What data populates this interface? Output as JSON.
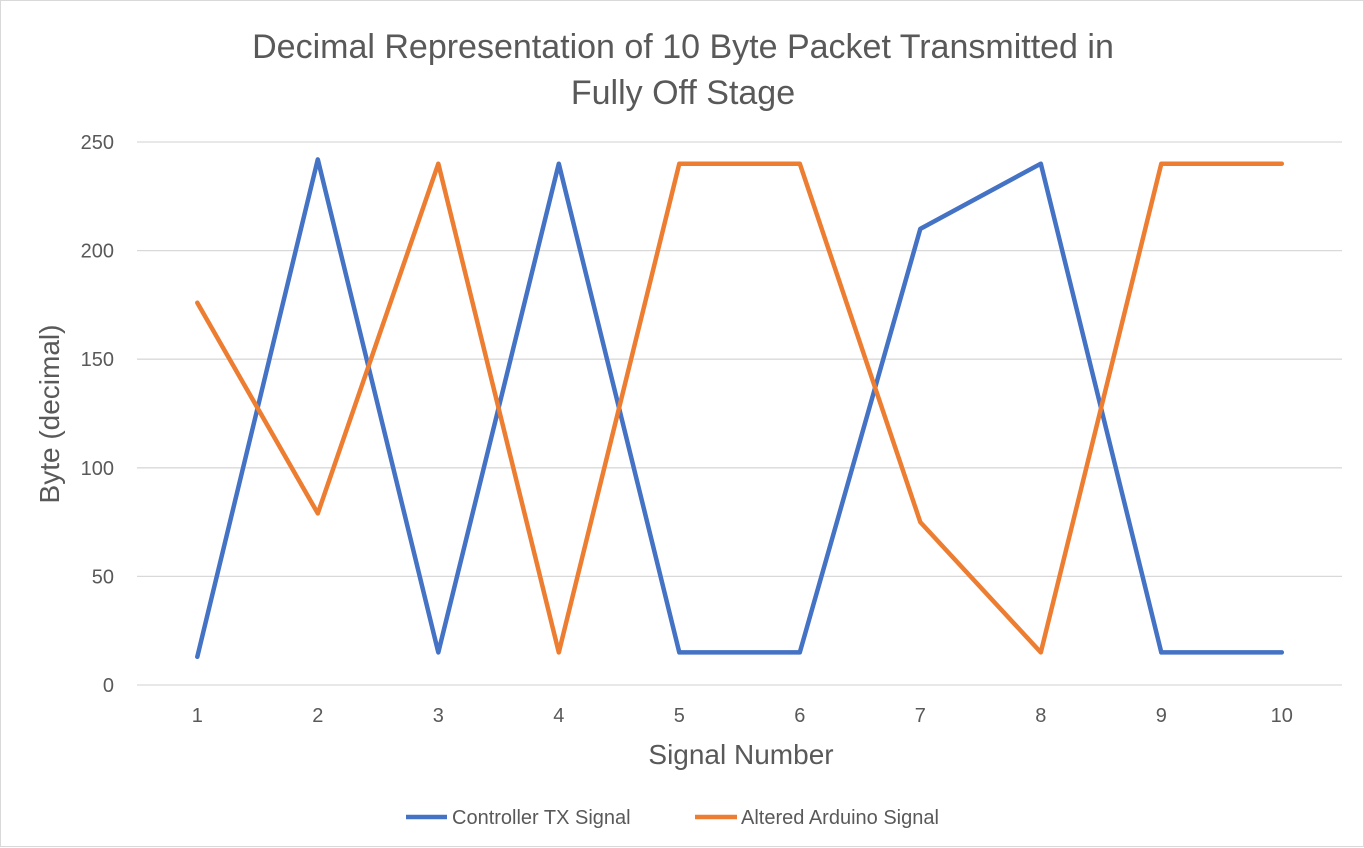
{
  "chart_data": {
    "type": "line",
    "title_lines": [
      "Decimal Representation of 10 Byte Packet Transmitted in",
      "Fully Off Stage"
    ],
    "xlabel": "Signal Number",
    "ylabel": "Byte (decimal)",
    "categories": [
      "1",
      "2",
      "3",
      "4",
      "5",
      "6",
      "7",
      "8",
      "9",
      "10"
    ],
    "ylim": [
      0,
      250
    ],
    "yticks": [
      "0",
      "50",
      "100",
      "150",
      "200",
      "250"
    ],
    "grid": true,
    "legend_position": "bottom",
    "series": [
      {
        "name": "Controller TX Signal",
        "color": "#4472c4",
        "values": [
          13,
          242,
          15,
          240,
          15,
          15,
          210,
          240,
          15,
          15
        ]
      },
      {
        "name": "Altered Arduino Signal",
        "color": "#ed7d31",
        "values": [
          176,
          79,
          240,
          15,
          240,
          240,
          75,
          15,
          240,
          240
        ]
      }
    ]
  }
}
